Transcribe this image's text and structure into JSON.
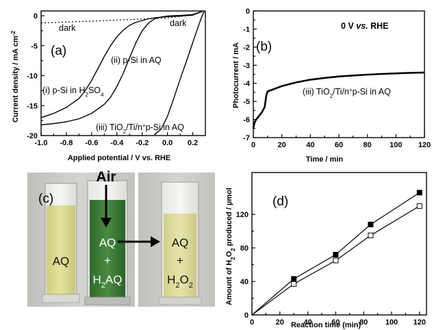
{
  "chart_data": [
    {
      "panel": "(a)",
      "type": "line",
      "xlabel": "Applied potential / V vs. RHE",
      "ylabel": "Current density / mA cm-2",
      "xlim": [
        -1.0,
        0.3
      ],
      "ylim": [
        -20,
        0.8
      ],
      "xticks": [
        "-1.0",
        "-0.8",
        "-0.6",
        "-0.4",
        "-0.2",
        "0.0",
        "0.2"
      ],
      "yticks": [
        "0",
        "-5",
        "-10",
        "-15",
        "-20"
      ],
      "grid": false,
      "annotations": [
        "dark",
        "dark",
        "(i) p-Si in H2SO4",
        "(ii) p-Si in AQ",
        "(iii) TiO2/Ti/n+p-Si in AQ"
      ],
      "series": [
        {
          "label": "(i) p-Si in H2SO4",
          "x": [
            -1.0,
            -0.9,
            -0.8,
            -0.7,
            -0.65,
            -0.6,
            -0.55,
            -0.5,
            -0.45,
            -0.4,
            -0.35,
            -0.3,
            -0.25,
            -0.2,
            -0.15,
            -0.1,
            -0.05,
            0.0,
            0.1,
            0.2,
            0.27
          ],
          "y": [
            -17.0,
            -16.3,
            -15.3,
            -13.8,
            -12.5,
            -10.8,
            -8.8,
            -6.8,
            -5.0,
            -3.5,
            -2.4,
            -1.6,
            -1.1,
            -0.8,
            -0.5,
            -0.35,
            -0.25,
            -0.15,
            -0.05,
            0.1,
            0.7
          ]
        },
        {
          "label": "(ii) p-Si in AQ",
          "x": [
            -1.0,
            -0.9,
            -0.8,
            -0.7,
            -0.6,
            -0.5,
            -0.45,
            -0.4,
            -0.35,
            -0.3,
            -0.25,
            -0.2,
            -0.15,
            -0.1,
            -0.05,
            0.0,
            0.05,
            0.1,
            0.2,
            0.27
          ],
          "y": [
            -18.2,
            -18.0,
            -17.7,
            -17.2,
            -16.3,
            -14.8,
            -13.6,
            -11.8,
            -9.6,
            -7.0,
            -4.5,
            -2.5,
            -1.2,
            -0.5,
            -0.2,
            -0.05,
            0.0,
            0.05,
            0.2,
            0.7
          ]
        },
        {
          "label": "(iii) TiO2/Ti/n+p-Si in AQ",
          "x": [
            -0.1,
            -0.05,
            0.0,
            0.05,
            0.1,
            0.15,
            0.2,
            0.23,
            0.25,
            0.27,
            0.29
          ],
          "y": [
            -19.8,
            -18.9,
            -16.8,
            -13.8,
            -10.6,
            -7.6,
            -4.5,
            -2.6,
            -1.4,
            -0.2,
            0.7
          ]
        },
        {
          "label": "dark",
          "style": "dotted",
          "x": [
            -1.0,
            -0.8,
            -0.6,
            -0.4,
            -0.2,
            0.0,
            0.2,
            0.28
          ],
          "y": [
            -1.2,
            -1.05,
            -0.9,
            -0.72,
            -0.55,
            -0.35,
            0.1,
            0.7
          ]
        }
      ]
    },
    {
      "panel": "(b)",
      "type": "line",
      "xlabel": "Time / min",
      "ylabel": "Photocurrent / mA",
      "xlim": [
        0,
        120
      ],
      "ylim": [
        -7,
        0
      ],
      "xticks": [
        "0",
        "20",
        "40",
        "60",
        "80",
        "100",
        "120"
      ],
      "yticks": [
        "0",
        "-1",
        "-2",
        "-3",
        "-4",
        "-5",
        "-6",
        "-7"
      ],
      "grid": false,
      "annotations": [
        "0 V vs. RHE",
        "(iii) TiO2/Ti/n+p-Si in AQ"
      ],
      "series": [
        {
          "label": "(iii) TiO2/Ti/n+p-Si in AQ",
          "x": [
            0,
            0.5,
            1,
            2,
            4,
            6,
            8,
            9,
            10,
            15,
            20,
            30,
            40,
            50,
            60,
            70,
            80,
            90,
            100,
            110,
            120
          ],
          "y": [
            -6.5,
            -6.3,
            -6.15,
            -6.0,
            -5.8,
            -5.6,
            -5.3,
            -4.7,
            -4.45,
            -4.3,
            -4.15,
            -3.95,
            -3.8,
            -3.7,
            -3.62,
            -3.57,
            -3.52,
            -3.48,
            -3.45,
            -3.42,
            -3.4
          ]
        }
      ]
    },
    {
      "panel": "(d)",
      "type": "line",
      "xlabel": "Reaction time (min)",
      "ylabel": "Amount of H2O2 produced / µmol",
      "xlim": [
        0,
        125
      ],
      "ylim": [
        0,
        170
      ],
      "xticks": [
        "0",
        "20",
        "40",
        "60",
        "80",
        "100",
        "120"
      ],
      "yticks": [
        "0",
        "40",
        "80",
        "120"
      ],
      "grid": false,
      "series": [
        {
          "label": "filled squares",
          "marker": "filled-square",
          "x": [
            0,
            30,
            60,
            85,
            120
          ],
          "y": [
            0,
            43,
            72,
            108,
            146
          ]
        },
        {
          "label": "open squares",
          "marker": "open-square",
          "x": [
            0,
            30,
            60,
            85,
            120
          ],
          "y": [
            0,
            37,
            65,
            95,
            130
          ]
        }
      ]
    }
  ],
  "photo": {
    "panel": "(c)",
    "air_label": "Air",
    "cuvette1_label": "AQ",
    "cuvette2_label1": "AQ",
    "cuvette2_label2": "+",
    "cuvette2_label3": "H2AQ",
    "cuvette3_label1": "AQ",
    "cuvette3_label2": "+",
    "cuvette3_label3": "H2O2",
    "colors": {
      "yellow_solution": "#d8d68a",
      "green_solution": "#3f7a3a",
      "background": "#c9c9c6"
    }
  }
}
